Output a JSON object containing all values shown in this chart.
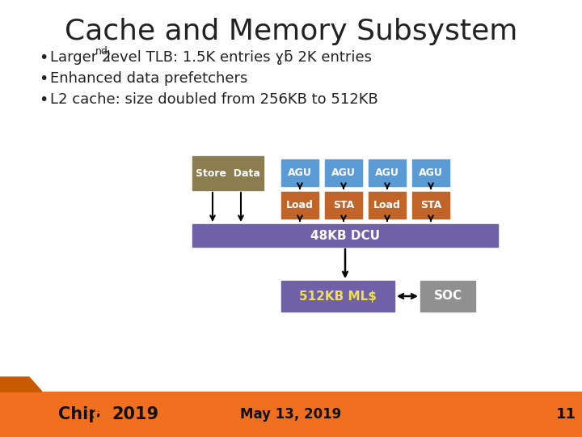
{
  "title": "Cache and Memory Subsystem",
  "title_fontsize": 26,
  "bullets": [
    "Enhanced data prefetchers",
    "L2 cache: size doubled from 256KB to 512KB"
  ],
  "bullet_line1_pre": "Larger 2",
  "bullet_line1_sup": "nd",
  "bullet_line1_post": " level TLB: 1.5K entries ɣƃ 2K entries",
  "bullet_fontsize": 13,
  "bg_color": "#ffffff",
  "footer_color": "#f07020",
  "footer_text_date": "May 13, 2019",
  "footer_text_num": "11",
  "footer_fontsize": 11,
  "store_data_color": "#8b7d50",
  "agu_color": "#5b9bd5",
  "load_sta_color": "#c0642a",
  "dcu_color": "#7060a8",
  "ml_color": "#7060a8",
  "soc_color": "#909090",
  "ml_text_color": "#f0e050",
  "white_text": "#ffffff",
  "dark_text": "#222222"
}
